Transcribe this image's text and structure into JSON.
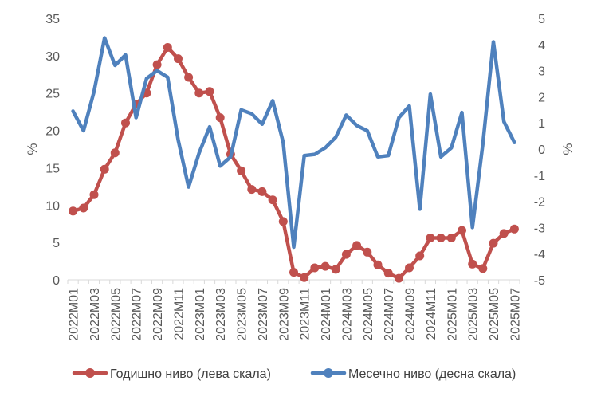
{
  "chart_data": {
    "type": "line",
    "categories": [
      "2022M01",
      "2022M02",
      "2022M03",
      "2022M04",
      "2022M05",
      "2022M06",
      "2022M07",
      "2022M08",
      "2022M09",
      "2022M10",
      "2022M11",
      "2022M12",
      "2023M01",
      "2023M02",
      "2023M03",
      "2023M04",
      "2023M05",
      "2023M06",
      "2023M07",
      "2023M08",
      "2023M09",
      "2023M10",
      "2023M11",
      "2023M12",
      "2024M01",
      "2024M02",
      "2024M03",
      "2024M04",
      "2024M05",
      "2024M06",
      "2024M07",
      "2024M08",
      "2024M09",
      "2024M10",
      "2024M11",
      "2024M12",
      "2025M01",
      "2025M02",
      "2025M03",
      "2025M04",
      "2025M05",
      "2025M06",
      "2025M07"
    ],
    "x_tick_labels": [
      "2022M01",
      "2022M03",
      "2022M05",
      "2022M07",
      "2022M09",
      "2022M11",
      "2023M01",
      "2023M03",
      "2023M05",
      "2023M07",
      "2023M09",
      "2023M11",
      "2024M01",
      "2024M03",
      "2024M05",
      "2024M07",
      "2024M09",
      "2024M11",
      "2025M01",
      "2025M03",
      "2025M05",
      "2025M07"
    ],
    "series": [
      {
        "name": "Годишно ниво (лева скала)",
        "axis": "left",
        "color": "#C0504D",
        "values": [
          9.2,
          9.6,
          11.4,
          14.8,
          17.0,
          21.0,
          23.5,
          25.0,
          28.8,
          31.1,
          29.6,
          27.1,
          25.0,
          25.2,
          21.7,
          16.8,
          14.6,
          12.1,
          11.8,
          10.7,
          7.8,
          1.0,
          0.3,
          1.6,
          1.8,
          1.4,
          3.4,
          4.6,
          3.7,
          2.0,
          0.9,
          0.2,
          1.6,
          3.2,
          5.6,
          5.6,
          5.6,
          6.6,
          2.1,
          1.5,
          4.9,
          6.2,
          6.8
        ]
      },
      {
        "name": "Месечно ниво (десна скала)",
        "axis": "right",
        "color": "#4F81BD",
        "values": [
          1.45,
          0.7,
          2.2,
          4.25,
          3.2,
          3.6,
          1.2,
          2.7,
          3.0,
          2.75,
          0.35,
          -1.45,
          -0.15,
          0.85,
          -0.65,
          -0.3,
          1.5,
          1.35,
          0.95,
          1.85,
          0.25,
          -3.75,
          -0.25,
          -0.2,
          0.05,
          0.45,
          1.3,
          0.9,
          0.7,
          -0.3,
          -0.25,
          1.2,
          1.65,
          -2.3,
          2.1,
          -0.3,
          0.05,
          1.4,
          -3.0,
          0.2,
          4.1,
          1.05,
          0.25
        ]
      }
    ],
    "ylabel": "%",
    "ylabel_right": "%",
    "ylim": [
      0,
      35
    ],
    "ylim_right": [
      -5,
      5
    ],
    "y_ticks": [
      "0",
      "5",
      "10",
      "15",
      "20",
      "25",
      "30",
      "35"
    ],
    "y_ticks_right": [
      "-5",
      "-4",
      "-3",
      "-2",
      "-1",
      "0",
      "1",
      "2",
      "3",
      "4",
      "5"
    ],
    "grid": false,
    "legend_position": "bottom"
  }
}
